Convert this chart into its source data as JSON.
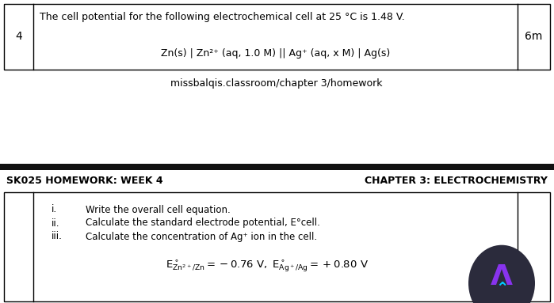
{
  "bg_color": "#ffffff",
  "dark_bar_color": "#111111",
  "table_border_color": "#000000",
  "question_number": "4",
  "marks": "6m",
  "question_line1": "The cell potential for the following electrochemical cell at 25 °C is 1.48 V.",
  "question_line2": "Zn(s) | Zn²⁺ (aq, 1.0 M) || Ag⁺ (aq, x M) | Ag(s)",
  "website": "missbalqis.classroom/chapter 3/homework",
  "left_label": "SK025 HOMEWORK: WEEK 4",
  "right_label": "CHAPTER 3: ELECTROCHEMISTRY",
  "sub_i": "i.",
  "sub_ii": "ii.",
  "sub_iii": "iii.",
  "text_i": "Write the overall cell equation.",
  "text_ii": "Calculate the standard electrode potential, E°cell.",
  "text_iii": "Calculate the concentration of Ag⁺ ion in the cell.",
  "logo_color": "#2a2a3a",
  "logo_lambda_color1": "#9933ff",
  "logo_lambda_color2": "#00aaff"
}
